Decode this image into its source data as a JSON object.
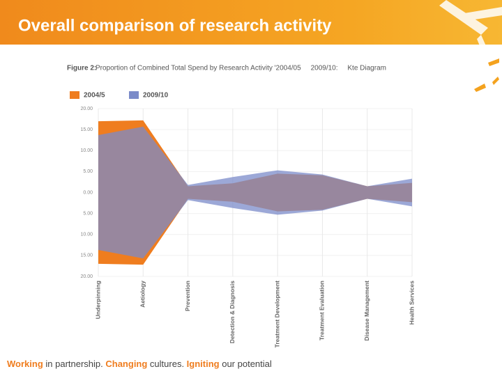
{
  "slide_title": "Overall comparison of research activity",
  "chart_data": {
    "type": "kite",
    "caption_prefix": "Figure 2:",
    "title": "Proportion of Combined Total Spend by Research Activity '2004/05     2009/10:     Kte Diagram",
    "categories": [
      "Underpinning",
      "Aetiology",
      "Prevention",
      "Detection & Diagnosis",
      "Treatment Development",
      "Treatment Evaluation",
      "Disease Management",
      "Health Services"
    ],
    "series": [
      {
        "name": "2004/5",
        "color": "#ef7d1f",
        "values": [
          17,
          17.2,
          1.5,
          2.2,
          4.5,
          4.1,
          1.5,
          2.3
        ]
      },
      {
        "name": "2009/10",
        "color": "#7b8bc9",
        "values": [
          13.7,
          15.7,
          1.8,
          3.7,
          5.3,
          4.3,
          1.5,
          3.3
        ]
      }
    ],
    "ylim": [
      -20,
      20
    ],
    "yticks": [
      {
        "value": 20,
        "label": "20.00"
      },
      {
        "value": 15,
        "label": "15.00"
      },
      {
        "value": 10,
        "label": "10.00"
      },
      {
        "value": 5,
        "label": "5.00"
      },
      {
        "value": 0,
        "label": "0.00"
      },
      {
        "value": -5,
        "label": "5.00"
      },
      {
        "value": -10,
        "label": "10.00"
      },
      {
        "value": -15,
        "label": "15.00"
      },
      {
        "value": -20,
        "label": "20.00"
      }
    ],
    "grid": true
  },
  "footer": [
    {
      "text": "Working",
      "color": "#ef7d1f"
    },
    {
      "text": " in partnership.",
      "color": "#444"
    },
    {
      "text": " Changing",
      "color": "#ef7d1f"
    },
    {
      "text": " cultures.",
      "color": "#444"
    },
    {
      "text": " Igniting",
      "color": "#ef7d1f"
    },
    {
      "text": " our potential",
      "color": "#444"
    }
  ]
}
